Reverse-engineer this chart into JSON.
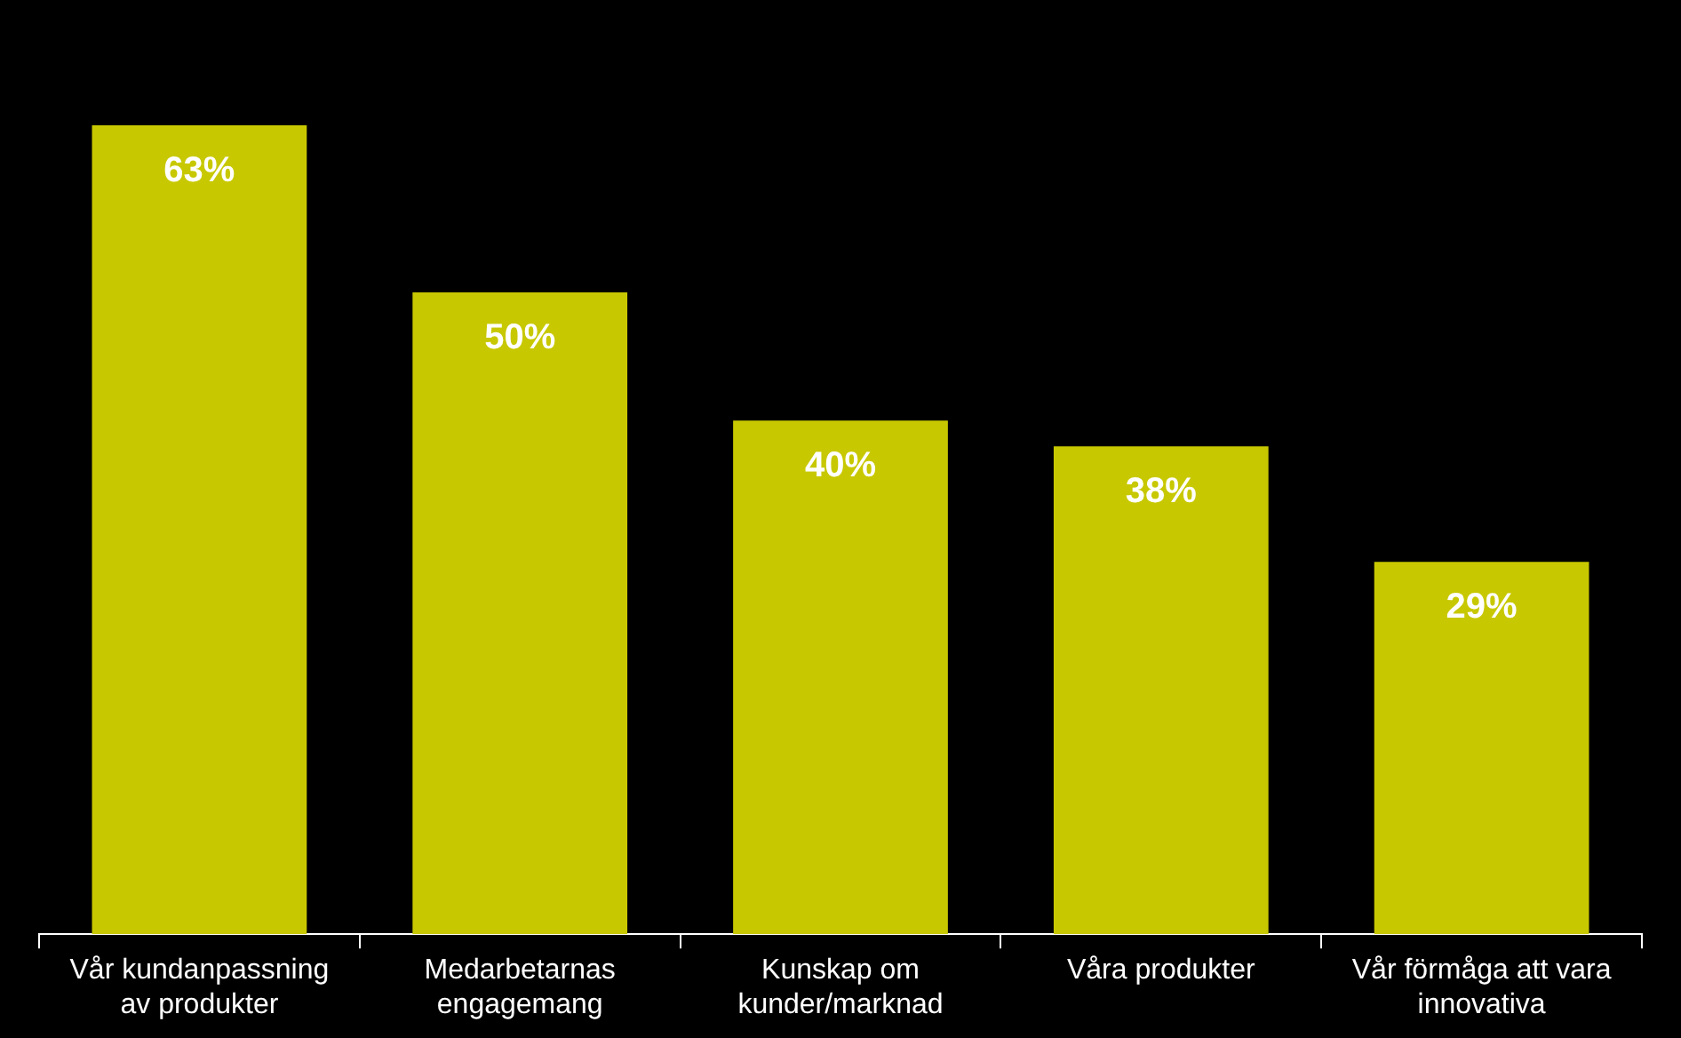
{
  "chart_data": {
    "type": "bar",
    "categories": [
      "Vår kundanpassning av produkter",
      "Medarbetarnas engagemang",
      "Kunskap om kunder/marknad",
      "Våra produkter",
      "Vår förmåga att vara innovativa"
    ],
    "values": [
      63,
      50,
      40,
      38,
      29
    ],
    "value_labels": [
      "63%",
      "50%",
      "40%",
      "38%",
      "29%"
    ],
    "color": "#c8c800",
    "grid": false,
    "legend": false
  }
}
